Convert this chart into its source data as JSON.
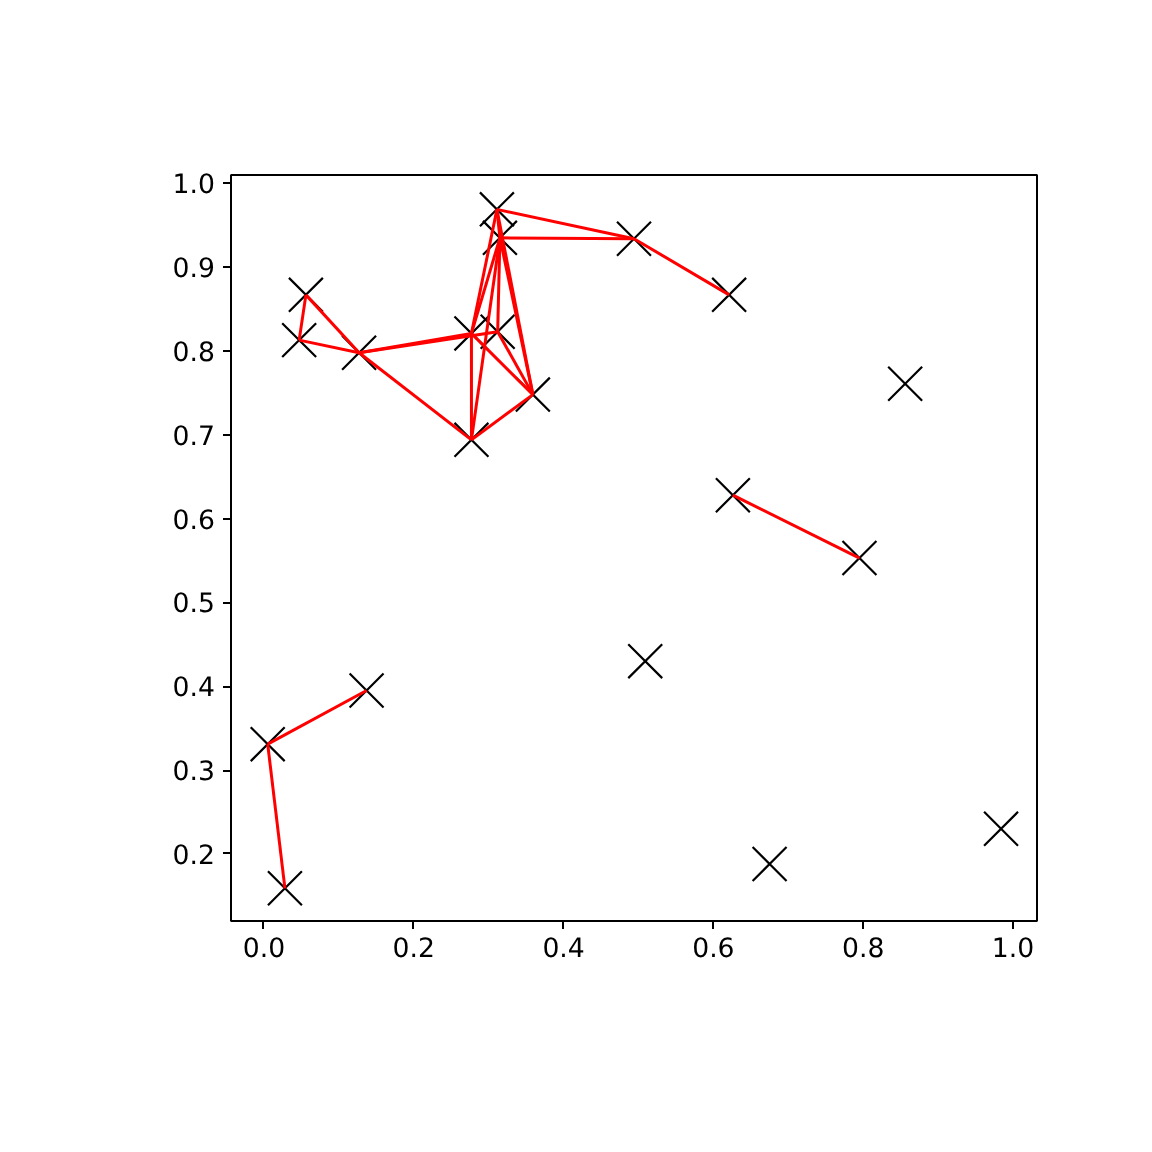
{
  "chart_data": {
    "type": "scatter",
    "line_style": "solid",
    "grid": false,
    "xlim": [
      -0.044,
      1.032
    ],
    "ylim": [
      0.12,
      1.01
    ],
    "xticks": [
      {
        "value": 0,
        "label": "0.0"
      },
      0.2,
      0.4,
      0.6,
      0.8,
      {
        "value": 1,
        "label": "1.0"
      }
    ],
    "yticks": [
      0.2,
      0.3,
      0.4,
      0.5,
      0.6,
      0.7,
      0.8,
      0.9,
      {
        "value": 1,
        "label": "1.0"
      }
    ],
    "series": [
      {
        "marker": "cross",
        "color": "#000000",
        "x": [
          0.056,
          0.047,
          0.127,
          0.277,
          0.312,
          0.277,
          0.359,
          0.311,
          0.315,
          0.494,
          0.621,
          0.856,
          0.626,
          0.795,
          0.509,
          0.675,
          0.984,
          0.137,
          0.005,
          0.028
        ],
        "values": [
          0.867,
          0.813,
          0.798,
          0.821,
          0.823,
          0.694,
          0.748,
          0.969,
          0.935,
          0.934,
          0.867,
          0.761,
          0.628,
          0.553,
          0.43,
          0.188,
          0.23,
          0.395,
          0.331,
          0.159
        ]
      },
      {
        "type": "line",
        "color": "#ff0000",
        "x": [
          0.056,
          0.047
        ],
        "values": [
          0.867,
          0.813
        ]
      },
      {
        "type": "line",
        "color": "#ff0000",
        "x": [
          0.047,
          0.127
        ],
        "values": [
          0.813,
          0.798
        ]
      },
      {
        "type": "line",
        "color": "#ff0000",
        "x": [
          0.056,
          0.127
        ],
        "values": [
          0.867,
          0.798
        ]
      },
      {
        "type": "line",
        "color": "#ff0000",
        "x": [
          0.127,
          0.277
        ],
        "values": [
          0.798,
          0.694
        ]
      },
      {
        "type": "line",
        "color": "#ff0000",
        "x": [
          0.127,
          0.277
        ],
        "values": [
          0.798,
          0.821
        ]
      },
      {
        "type": "line",
        "color": "#ff0000",
        "x": [
          0.127,
          0.312
        ],
        "values": [
          0.798,
          0.823
        ]
      },
      {
        "type": "line",
        "color": "#ff0000",
        "x": [
          0.277,
          0.277
        ],
        "values": [
          0.821,
          0.694
        ]
      },
      {
        "type": "line",
        "color": "#ff0000",
        "x": [
          0.277,
          0.359
        ],
        "values": [
          0.694,
          0.748
        ]
      },
      {
        "type": "line",
        "color": "#ff0000",
        "x": [
          0.277,
          0.315
        ],
        "values": [
          0.694,
          0.935
        ]
      },
      {
        "type": "line",
        "color": "#ff0000",
        "x": [
          0.277,
          0.359
        ],
        "values": [
          0.821,
          0.748
        ]
      },
      {
        "type": "line",
        "color": "#ff0000",
        "x": [
          0.312,
          0.359
        ],
        "values": [
          0.823,
          0.748
        ]
      },
      {
        "type": "line",
        "color": "#ff0000",
        "x": [
          0.277,
          0.311
        ],
        "values": [
          0.821,
          0.969
        ]
      },
      {
        "type": "line",
        "color": "#ff0000",
        "x": [
          0.277,
          0.315
        ],
        "values": [
          0.821,
          0.935
        ]
      },
      {
        "type": "line",
        "color": "#ff0000",
        "x": [
          0.312,
          0.315
        ],
        "values": [
          0.823,
          0.935
        ]
      },
      {
        "type": "line",
        "color": "#ff0000",
        "x": [
          0.359,
          0.311
        ],
        "values": [
          0.748,
          0.969
        ]
      },
      {
        "type": "line",
        "color": "#ff0000",
        "x": [
          0.359,
          0.315
        ],
        "values": [
          0.748,
          0.935
        ]
      },
      {
        "type": "line",
        "color": "#ff0000",
        "x": [
          0.311,
          0.315
        ],
        "values": [
          0.969,
          0.935
        ]
      },
      {
        "type": "line",
        "color": "#ff0000",
        "x": [
          0.311,
          0.494
        ],
        "values": [
          0.969,
          0.934
        ]
      },
      {
        "type": "line",
        "color": "#ff0000",
        "x": [
          0.315,
          0.494
        ],
        "values": [
          0.935,
          0.934
        ]
      },
      {
        "type": "line",
        "color": "#ff0000",
        "x": [
          0.494,
          0.621
        ],
        "values": [
          0.934,
          0.867
        ]
      },
      {
        "type": "line",
        "color": "#ff0000",
        "x": [
          0.626,
          0.795
        ],
        "values": [
          0.628,
          0.553
        ]
      },
      {
        "type": "line",
        "color": "#ff0000",
        "x": [
          0.137,
          0.005
        ],
        "values": [
          0.395,
          0.331
        ]
      },
      {
        "type": "line",
        "color": "#ff0000",
        "x": [
          0.005,
          0.028
        ],
        "values": [
          0.331,
          0.159
        ]
      }
    ]
  }
}
